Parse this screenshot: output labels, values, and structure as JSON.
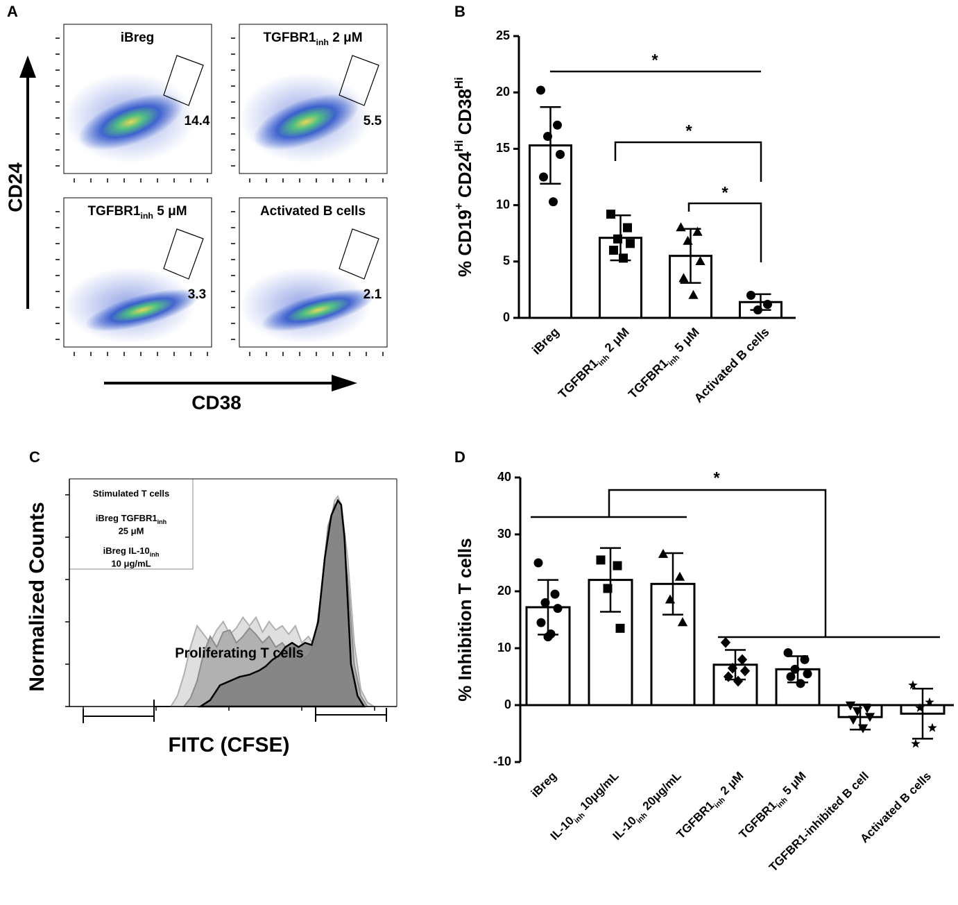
{
  "chart_data": [
    {
      "type": "flow",
      "panel": "A",
      "xlabel": "CD38",
      "ylabel": "CD24",
      "plots": [
        {
          "title": "iBreg",
          "gate": 14.4
        },
        {
          "title": [
            "TGFBR1",
            "inh",
            " 2 μM"
          ],
          "gate": 5.5
        },
        {
          "title": [
            "TGFBR1",
            "inh",
            " 5 μM"
          ],
          "gate": 3.3
        },
        {
          "title": "Activated B cells",
          "gate": 2.1
        }
      ]
    },
    {
      "type": "bar",
      "panel": "B",
      "ylabel": [
        "% CD19",
        "+",
        " CD24",
        "Hi",
        " CD38",
        "Hi"
      ],
      "categories": [
        "iBreg",
        [
          "TGFBR1",
          "inh",
          " 2 μM"
        ],
        [
          "TGFBR1",
          "inh",
          " 5 μM"
        ],
        "Activated B cells"
      ],
      "values": [
        15.3,
        7.1,
        5.5,
        1.4
      ],
      "errors": [
        3.4,
        2.0,
        2.4,
        0.7
      ],
      "points": [
        [
          20.2,
          17.1,
          16.1,
          14.5,
          12.5,
          10.3
        ],
        [
          9.2,
          8.0,
          7.0,
          6.6,
          6.0,
          5.3
        ],
        [
          8.0,
          7.6,
          6.8,
          5.0,
          3.5,
          2.0
        ],
        [
          2.0,
          1.2,
          0.7
        ]
      ],
      "markers": [
        "circle",
        "square",
        "triangle",
        "circle"
      ],
      "color": "#000000",
      "ylim": [
        0,
        25
      ],
      "yticks": [
        0,
        5,
        10,
        15,
        20,
        25
      ],
      "annotations": [
        "*",
        "*",
        "*"
      ]
    },
    {
      "type": "density",
      "panel": "C",
      "xlabel": "FITC (CFSE)",
      "ylabel": "Normalized Counts",
      "annotation": "Proliferating T cells",
      "xlim": [
        0,
        100
      ],
      "ylim": [
        0,
        100
      ],
      "series": [
        {
          "name": "Stimulated T cells",
          "color": "#d9d9d9",
          "stroke": "#b0b0b0",
          "x": [
            31,
            33,
            35,
            37,
            39,
            41,
            43,
            45,
            47,
            49,
            51,
            53,
            55,
            57,
            59,
            61,
            63,
            65,
            67,
            69,
            71,
            73,
            75,
            77,
            79,
            81,
            82,
            83,
            85,
            87,
            89,
            91,
            93
          ],
          "values": [
            0,
            5,
            15,
            28,
            38,
            34,
            30,
            36,
            40,
            34,
            37,
            42,
            38,
            42,
            35,
            40,
            36,
            38,
            34,
            38,
            30,
            33,
            28,
            45,
            80,
            97,
            99,
            95,
            70,
            30,
            8,
            2,
            0
          ]
        },
        {
          "name": [
            "iBreg TGFBR1",
            "inh",
            "25 μM"
          ],
          "color": "#a9a9a9",
          "stroke": "#8c8c8c",
          "x": [
            35,
            37,
            39,
            41,
            43,
            45,
            47,
            49,
            51,
            53,
            55,
            57,
            59,
            61,
            63,
            65,
            67,
            69,
            71,
            73,
            75,
            77,
            79,
            81,
            83,
            85,
            87,
            89,
            91
          ],
          "values": [
            0,
            4,
            12,
            25,
            33,
            28,
            35,
            36,
            30,
            33,
            37,
            34,
            30,
            33,
            28,
            30,
            26,
            28,
            22,
            24,
            30,
            55,
            85,
            95,
            90,
            60,
            20,
            5,
            0
          ]
        },
        {
          "name": [
            "iBreg IL-10",
            "inh",
            "10 μg/mL"
          ],
          "color": "#7f7f7f",
          "stroke": "#000000",
          "x": [
            40,
            43,
            46,
            49,
            52,
            55,
            58,
            60,
            62,
            64,
            66,
            68,
            70,
            72,
            74,
            76,
            78,
            80,
            82,
            83,
            84,
            85,
            86,
            88,
            90
          ],
          "values": [
            0,
            3,
            10,
            12,
            14,
            15,
            17,
            19,
            22,
            24,
            28,
            30,
            28,
            30,
            29,
            40,
            70,
            90,
            97,
            95,
            80,
            50,
            20,
            5,
            0
          ]
        }
      ]
    },
    {
      "type": "bar",
      "panel": "D",
      "ylabel": "% Inhibition T cells",
      "categories": [
        "iBreg",
        [
          "IL-10",
          "inh",
          " 10μg/mL"
        ],
        [
          "IL-10",
          "inh",
          " 20μg/mL"
        ],
        [
          "TGFBR1",
          "inh",
          " 2 μM"
        ],
        [
          "TGFBR1",
          "inh",
          " 5 μM"
        ],
        "TGFBR1-inhibited B cell",
        "Activated B cells"
      ],
      "values": [
        17.2,
        22.0,
        21.3,
        7.1,
        6.3,
        -2.1,
        -1.5
      ],
      "errors": [
        4.8,
        5.6,
        5.4,
        2.6,
        2.3,
        2.2,
        4.4
      ],
      "points": [
        [
          25,
          19.5,
          18,
          17,
          14.5,
          12.5,
          12
        ],
        [
          25.5,
          24.5,
          20.5,
          13.5
        ],
        [
          26.5,
          22.5,
          18.5,
          14.5
        ],
        [
          11,
          8,
          6.5,
          6,
          5,
          4.2
        ],
        [
          9.2,
          8,
          6.3,
          5.5,
          5,
          3.8
        ],
        [
          0,
          -0.5,
          -1,
          -2,
          -2.5,
          -4
        ],
        [
          3.5,
          0.5,
          -0.5,
          -4,
          -6.8
        ]
      ],
      "markers": [
        "circle",
        "square",
        "triangle",
        "diamond",
        "circle",
        "triangle-down",
        "star"
      ],
      "color": "#000000",
      "ylim": [
        -10,
        40
      ],
      "yticks": [
        -10,
        0,
        10,
        20,
        30,
        40
      ],
      "annotations": [
        "*"
      ]
    }
  ]
}
